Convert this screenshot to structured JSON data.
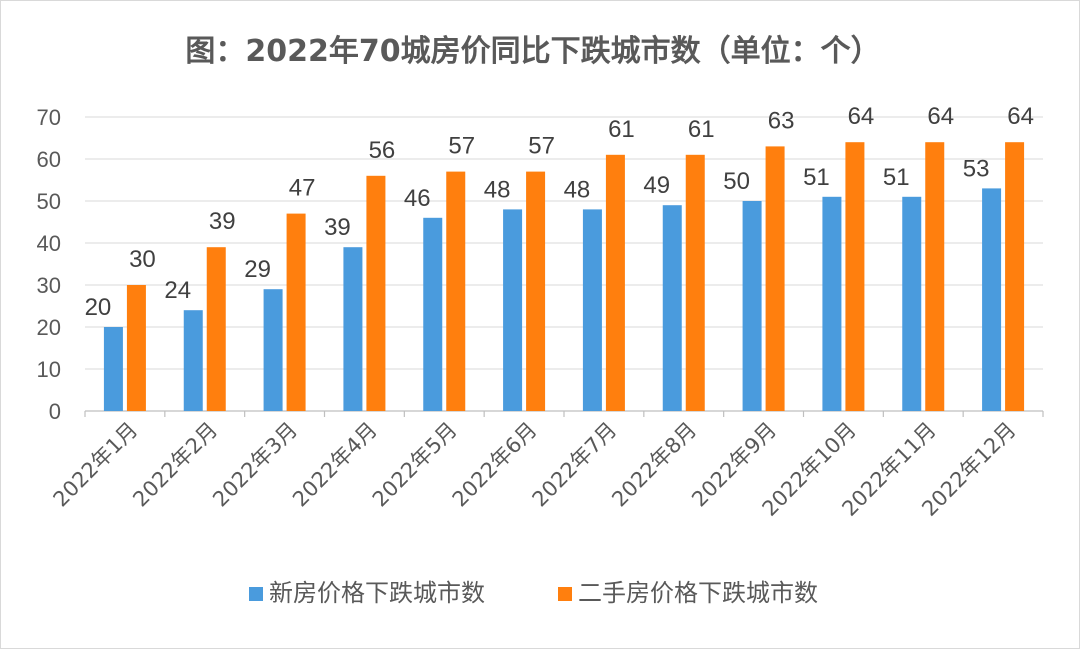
{
  "chart_data": {
    "type": "bar",
    "title": "图：2022年70城房价同比下跌城市数（单位：个）",
    "xlabel": "",
    "ylabel": "",
    "ylim": [
      0,
      70
    ],
    "yticks": [
      0,
      10,
      20,
      30,
      40,
      50,
      60,
      70
    ],
    "grid": true,
    "legend_position": "bottom",
    "categories": [
      "2022年1月",
      "2022年2月",
      "2022年3月",
      "2022年4月",
      "2022年5月",
      "2022年6月",
      "2022年7月",
      "2022年8月",
      "2022年9月",
      "2022年10月",
      "2022年11月",
      "2022年12月"
    ],
    "series": [
      {
        "name": "新房价格下跌城市数",
        "color": "#4a9bdd",
        "values": [
          20,
          24,
          29,
          39,
          46,
          48,
          48,
          49,
          50,
          51,
          51,
          53
        ]
      },
      {
        "name": "二手房价格下跌城市数",
        "color": "#ff7f0e",
        "values": [
          30,
          39,
          47,
          56,
          57,
          57,
          61,
          61,
          63,
          64,
          64,
          64
        ]
      }
    ]
  }
}
